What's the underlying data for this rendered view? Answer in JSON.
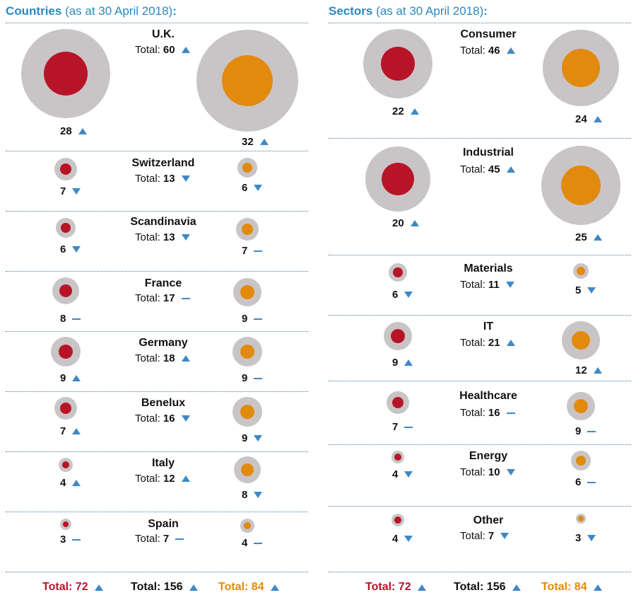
{
  "panels": [
    {
      "title": "Countries",
      "subtitle": "(as at 30 April 2018)",
      "colon": ":",
      "total_label": "Total:",
      "rows": [
        {
          "name": "U.K.",
          "total": "60",
          "total_trend": "up",
          "red": {
            "value": "28",
            "trend": "up"
          },
          "orange": {
            "value": "32",
            "trend": "up"
          }
        },
        {
          "name": "Switzerland",
          "total": "13",
          "total_trend": "down",
          "red": {
            "value": "7",
            "trend": "down"
          },
          "orange": {
            "value": "6",
            "trend": "down"
          }
        },
        {
          "name": "Scandinavia",
          "total": "13",
          "total_trend": "down",
          "red": {
            "value": "6",
            "trend": "down"
          },
          "orange": {
            "value": "7",
            "trend": "flat"
          }
        },
        {
          "name": "France",
          "total": "17",
          "total_trend": "flat",
          "red": {
            "value": "8",
            "trend": "flat"
          },
          "orange": {
            "value": "9",
            "trend": "flat"
          }
        },
        {
          "name": "Germany",
          "total": "18",
          "total_trend": "up",
          "red": {
            "value": "9",
            "trend": "up"
          },
          "orange": {
            "value": "9",
            "trend": "flat"
          }
        },
        {
          "name": "Benelux",
          "total": "16",
          "total_trend": "down",
          "red": {
            "value": "7",
            "trend": "up"
          },
          "orange": {
            "value": "9",
            "trend": "down"
          }
        },
        {
          "name": "Italy",
          "total": "12",
          "total_trend": "up",
          "red": {
            "value": "4",
            "trend": "up"
          },
          "orange": {
            "value": "8",
            "trend": "down"
          }
        },
        {
          "name": "Spain",
          "total": "7",
          "total_trend": "flat",
          "red": {
            "value": "3",
            "trend": "flat"
          },
          "orange": {
            "value": "4",
            "trend": "flat"
          }
        }
      ],
      "totals": [
        {
          "label": "Total: 72",
          "color": "#b81428",
          "trend": "up"
        },
        {
          "label": "Total: 156",
          "color": "#111111",
          "trend": "up"
        },
        {
          "label": "Total: 84",
          "color": "#e28a0e",
          "trend": "up"
        }
      ]
    },
    {
      "title": "Sectors",
      "subtitle": "(as at 30 April 2018)",
      "colon": ":",
      "total_label": "Total:",
      "rows": [
        {
          "name": "Consumer",
          "total": "46",
          "total_trend": "up",
          "red": {
            "value": "22",
            "trend": "up"
          },
          "orange": {
            "value": "24",
            "trend": "up"
          }
        },
        {
          "name": "Industrial",
          "total": "45",
          "total_trend": "up",
          "red": {
            "value": "20",
            "trend": "up"
          },
          "orange": {
            "value": "25",
            "trend": "up"
          }
        },
        {
          "name": "Materials",
          "total": "11",
          "total_trend": "down",
          "red": {
            "value": "6",
            "trend": "down"
          },
          "orange": {
            "value": "5",
            "trend": "down"
          }
        },
        {
          "name": "IT",
          "total": "21",
          "total_trend": "up",
          "red": {
            "value": "9",
            "trend": "up"
          },
          "orange": {
            "value": "12",
            "trend": "up"
          }
        },
        {
          "name": "Healthcare",
          "total": "16",
          "total_trend": "flat",
          "red": {
            "value": "7",
            "trend": "flat"
          },
          "orange": {
            "value": "9",
            "trend": "flat"
          }
        },
        {
          "name": "Energy",
          "total": "10",
          "total_trend": "down",
          "red": {
            "value": "4",
            "trend": "down"
          },
          "orange": {
            "value": "6",
            "trend": "flat"
          }
        },
        {
          "name": "Other",
          "total": "7",
          "total_trend": "down",
          "red": {
            "value": "4",
            "trend": "down"
          },
          "orange": {
            "value": "3",
            "trend": "down"
          }
        }
      ],
      "totals": [
        {
          "label": "Total: 72",
          "color": "#b81428",
          "trend": "up"
        },
        {
          "label": "Total: 156",
          "color": "#111111",
          "trend": "up"
        },
        {
          "label": "Total: 84",
          "color": "#e28a0e",
          "trend": "up"
        }
      ]
    }
  ],
  "colors": {
    "accent": "#2a88c2",
    "red": "#b81428",
    "orange": "#e28a0e",
    "ring": "#c9c5c6",
    "trend": "#3e89c5"
  },
  "chart_data": {
    "type": "bubble",
    "series": [
      {
        "color": "#b81428"
      },
      {
        "color": "#e28a0e"
      }
    ]
  }
}
